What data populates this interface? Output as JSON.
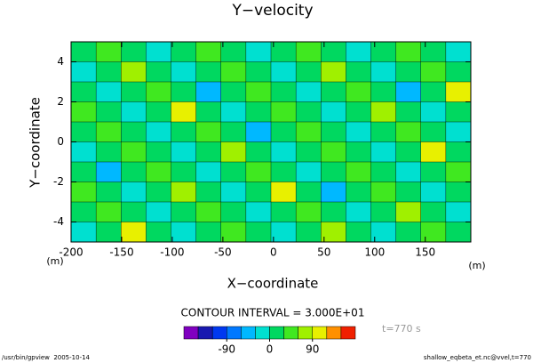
{
  "chart_data": {
    "type": "contour",
    "title": "Y−velocity",
    "x_label": "X−coordinate",
    "y_label": "Y−coordinate",
    "x_unit": "(m)",
    "y_unit": "(m)",
    "xlim": [
      -200,
      195
    ],
    "ylim": [
      -5,
      5
    ],
    "xticks": [
      -200,
      -150,
      -100,
      -50,
      0,
      50,
      100,
      150
    ],
    "yticks": [
      -4,
      -2,
      0,
      2,
      4
    ],
    "z": [
      [
        15,
        45,
        15,
        -15,
        15,
        45,
        15,
        -15,
        15,
        45,
        15,
        -15,
        15,
        45,
        15,
        -15
      ],
      [
        -15,
        15,
        75,
        15,
        -15,
        15,
        45,
        15,
        -15,
        15,
        75,
        15,
        -15,
        15,
        45,
        15
      ],
      [
        15,
        -15,
        15,
        45,
        15,
        -45,
        15,
        45,
        15,
        -15,
        15,
        45,
        15,
        -45,
        15,
        105
      ],
      [
        45,
        15,
        -15,
        15,
        105,
        15,
        -15,
        15,
        45,
        15,
        -15,
        15,
        75,
        15,
        -15,
        15
      ],
      [
        15,
        45,
        15,
        -15,
        15,
        45,
        15,
        -45,
        15,
        45,
        15,
        -15,
        15,
        45,
        15,
        -15
      ],
      [
        -15,
        15,
        45,
        15,
        -15,
        15,
        75,
        15,
        -15,
        15,
        45,
        15,
        -15,
        15,
        105,
        15
      ],
      [
        15,
        -45,
        15,
        45,
        15,
        -15,
        15,
        45,
        15,
        -15,
        15,
        45,
        15,
        -15,
        15,
        45
      ],
      [
        45,
        15,
        -15,
        15,
        75,
        15,
        -15,
        15,
        105,
        15,
        -45,
        15,
        45,
        15,
        -15,
        15
      ],
      [
        15,
        45,
        15,
        -15,
        15,
        45,
        15,
        -15,
        15,
        45,
        15,
        -15,
        15,
        75,
        15,
        -15
      ],
      [
        -15,
        15,
        105,
        15,
        -15,
        15,
        45,
        15,
        -15,
        15,
        75,
        15,
        -15,
        15,
        45,
        15
      ]
    ],
    "colorbar": {
      "boundaries": [
        -180,
        -150,
        -120,
        -90,
        -60,
        -30,
        0,
        30,
        60,
        90,
        120,
        150,
        180
      ],
      "colors": [
        "#8000c0",
        "#1818b0",
        "#0038f0",
        "#0078ff",
        "#00b8ff",
        "#00e0d0",
        "#00d860",
        "#40e820",
        "#a0f000",
        "#e8f000",
        "#ff9000",
        "#f02000"
      ],
      "ticks": [
        -90,
        0,
        90
      ]
    },
    "contour_interval_label": "CONTOUR INTERVAL = 3.000E+01",
    "time_label": "t=770 s",
    "footer_left": "/usr/bin/gpview  2005-10-14",
    "footer_right": "shallow_eqbeta_et.nc@vvel,t=770"
  }
}
